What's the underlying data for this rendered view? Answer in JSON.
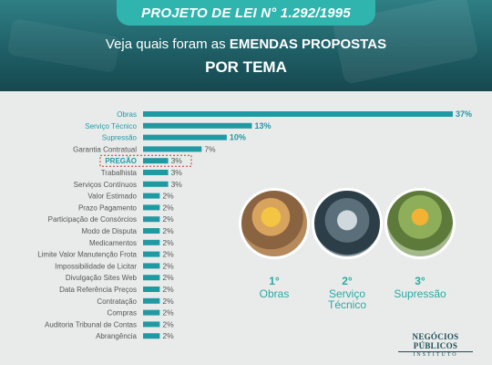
{
  "header": {
    "pill": "PROJETO DE LEI N° 1.292/1995",
    "subtitle_plain": "Veja quais foram as ",
    "subtitle_bold": "EMENDAS PROPOSTAS",
    "subtitle2": "POR TEMA"
  },
  "chart_data": {
    "type": "bar",
    "orientation": "horizontal",
    "categories": [
      "Obras",
      "Serviço Técnico",
      "Supressão",
      "Garantia Contratual",
      "PREGÃO",
      "Trabalhista",
      "Serviços Contínuos",
      "Valor Estimado",
      "Prazo Pagamento",
      "Participação de Consórcios",
      "Modo de Disputa",
      "Medicamentos",
      "Limite Valor Manutenção Frota",
      "Impossibilidade de Licitar",
      "Divulgação Sites Web",
      "Data Referência Preços",
      "Contratação",
      "Compras",
      "Auditoria Tribunal de Contas",
      "Abrangência"
    ],
    "values": [
      37,
      13,
      10,
      7,
      3,
      3,
      3,
      2,
      2,
      2,
      2,
      2,
      2,
      2,
      2,
      2,
      2,
      2,
      2,
      2
    ],
    "value_labels": [
      "37%",
      "13%",
      "10%",
      "7%",
      "3%",
      "3%",
      "3%",
      "2%",
      "2%",
      "2%",
      "2%",
      "2%",
      "2%",
      "2%",
      "2%",
      "2%",
      "2%",
      "2%",
      "2%",
      "2%"
    ],
    "highlight_teal_labels": [
      "Obras",
      "Serviço Técnico",
      "Supressão"
    ],
    "highlight_boxed": "PREGÃO",
    "bar_color": "#1f9aa3",
    "accent_color": "#2aa9a1",
    "highlight_box_color": "#c0392b",
    "xlim": [
      0,
      37
    ]
  },
  "podium": [
    {
      "rank": "1°",
      "label_lines": [
        "Obras"
      ]
    },
    {
      "rank": "2°",
      "label_lines": [
        "Serviço",
        "Técnico"
      ]
    },
    {
      "rank": "3°",
      "label_lines": [
        "Supressão"
      ]
    }
  ],
  "logo": {
    "line1": "NEGÓCIOS PÚBLICOS",
    "line2": "INSTITUTO"
  }
}
